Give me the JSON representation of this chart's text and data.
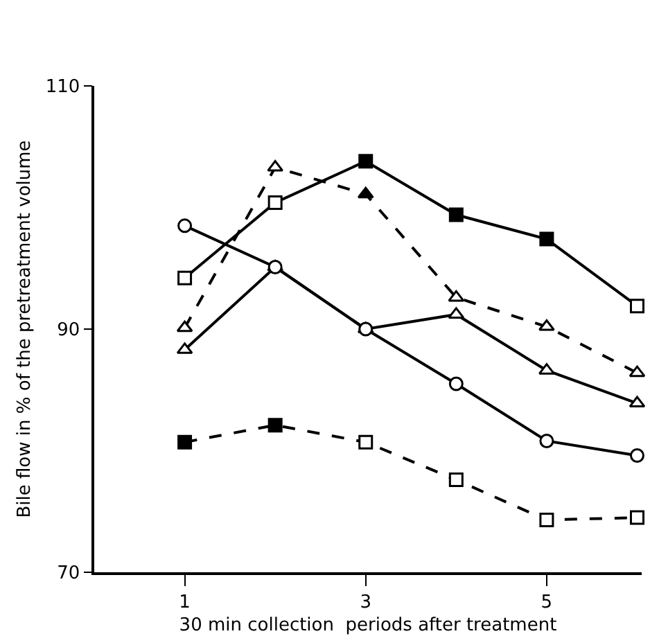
{
  "chart_data": {
    "type": "line",
    "xlabel": "30 min collection  periods after treatment",
    "ylabel": "Bile flow in % of the pretreatment volume",
    "x": [
      1,
      2,
      3,
      4,
      5,
      6
    ],
    "xlim": [
      0,
      6.05
    ],
    "xticks": [
      1,
      3,
      5
    ],
    "ylim": [
      70,
      110
    ],
    "yticks": [
      70,
      90,
      110
    ],
    "grid": false,
    "series": [
      {
        "color": "#000000",
        "marker": "square",
        "line_style": "solid",
        "colors": [
          "#ffffff",
          "#ffffff",
          "#000000",
          "#000000",
          "#000000",
          "#ffffff"
        ],
        "values": [
          94.2,
          100.4,
          103.8,
          99.4,
          97.4,
          91.9
        ]
      },
      {
        "color": "#000000",
        "marker": "triangle",
        "line_style": "dashed",
        "colors": [
          "#ffffff",
          "#ffffff",
          "#000000",
          "#ffffff",
          "#ffffff",
          "#ffffff"
        ],
        "values": [
          90.1,
          103.3,
          101.1,
          92.6,
          90.2,
          86.4
        ]
      },
      {
        "color": "#000000",
        "marker": "triangle",
        "line_style": "solid",
        "colors": [
          "#ffffff",
          "#ffffff",
          "#ffffff",
          "#ffffff",
          "#ffffff",
          "#ffffff"
        ],
        "values": [
          88.3,
          95.1,
          90,
          91.2,
          86.6,
          83.9
        ]
      },
      {
        "color": "#000000",
        "marker": "circle",
        "line_style": "solid",
        "colors": [
          "#ffffff",
          "#ffffff",
          "#ffffff",
          "#ffffff",
          "#ffffff",
          "#ffffff"
        ],
        "values": [
          98.5,
          95.1,
          90,
          85.5,
          80.8,
          79.6
        ]
      },
      {
        "color": "#000000",
        "marker": "square",
        "line_style": "dashed",
        "colors": [
          "#000000",
          "#000000",
          "#ffffff",
          "#ffffff",
          "#ffffff",
          "#ffffff"
        ],
        "values": [
          80.7,
          82.1,
          80.7,
          77.6,
          74.3,
          74.5
        ]
      }
    ]
  }
}
